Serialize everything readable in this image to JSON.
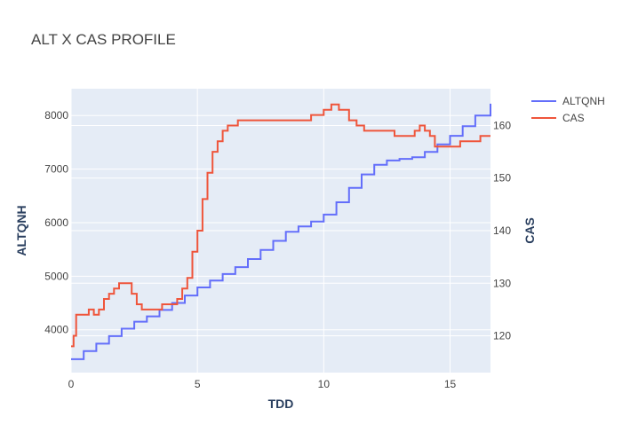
{
  "chart_data": {
    "type": "line",
    "title": "ALT X CAS PROFILE",
    "xlabel": "TDD",
    "ylabel": "ALTQNH",
    "y2label": "CAS",
    "xlim": [
      0,
      16.6
    ],
    "ylim": [
      3200,
      8500
    ],
    "y2lim": [
      113,
      167
    ],
    "x_ticks": [
      0,
      5,
      10,
      15
    ],
    "y_ticks": [
      4000,
      5000,
      6000,
      7000,
      8000
    ],
    "y2_ticks": [
      120,
      130,
      140,
      150,
      160
    ],
    "grid": true,
    "legend_position": "right",
    "colors": {
      "plot_bg": "#e5ecf6",
      "grid": "#ffffff",
      "axis_title": "#2a3f5f",
      "text": "#444444"
    },
    "series": [
      {
        "name": "ALTQNH",
        "axis": "y",
        "color": "#636efa",
        "x": [
          0,
          0.5,
          1,
          1.5,
          2,
          2.5,
          3,
          3.5,
          4,
          4.5,
          5,
          5.5,
          6,
          6.5,
          7,
          7.5,
          8,
          8.5,
          9,
          9.5,
          10,
          10.5,
          11,
          11.5,
          12,
          12.5,
          13,
          13.5,
          14,
          14.5,
          15,
          15.5,
          16,
          16.6
        ],
        "values": [
          3450,
          3600,
          3740,
          3880,
          4020,
          4150,
          4250,
          4370,
          4500,
          4640,
          4790,
          4920,
          5040,
          5170,
          5320,
          5490,
          5660,
          5830,
          5930,
          6020,
          6150,
          6380,
          6650,
          6900,
          7080,
          7160,
          7190,
          7220,
          7320,
          7460,
          7620,
          7800,
          8000,
          8220
        ]
      },
      {
        "name": "CAS",
        "axis": "y2",
        "color": "#ef553b",
        "x": [
          0,
          0.1,
          0.2,
          0.4,
          0.6,
          0.7,
          0.9,
          1.1,
          1.3,
          1.5,
          1.7,
          1.9,
          2.2,
          2.4,
          2.6,
          2.8,
          3.0,
          3.3,
          3.6,
          3.8,
          4.0,
          4.2,
          4.4,
          4.6,
          4.8,
          5.0,
          5.2,
          5.4,
          5.6,
          5.8,
          6.0,
          6.2,
          6.4,
          6.6,
          7.0,
          8.0,
          8.5,
          9.0,
          9.5,
          10.0,
          10.3,
          10.6,
          11.0,
          11.3,
          11.6,
          11.9,
          12.2,
          12.5,
          12.8,
          13.0,
          13.3,
          13.6,
          13.8,
          14.0,
          14.2,
          14.4,
          14.6,
          14.8,
          15.0,
          15.2,
          15.4,
          15.6,
          15.8,
          16.0,
          16.2,
          16.6
        ],
        "values": [
          118,
          120,
          124,
          124,
          124,
          125,
          124,
          125,
          127,
          128,
          129,
          130,
          130,
          128,
          126,
          125,
          125,
          125,
          126,
          126,
          126,
          127,
          129,
          131,
          136,
          140,
          146,
          151,
          155,
          157,
          159,
          160,
          160,
          161,
          161,
          161,
          161,
          161,
          162,
          163,
          164,
          163,
          161,
          160,
          159,
          159,
          159,
          159,
          158,
          158,
          158,
          159,
          160,
          159,
          158,
          156,
          156,
          156,
          156,
          156,
          157,
          157,
          157,
          157,
          158,
          158
        ]
      }
    ]
  }
}
